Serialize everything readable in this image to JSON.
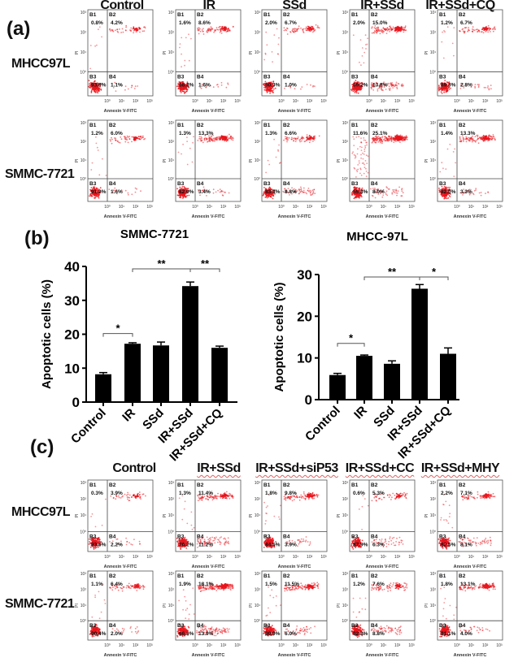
{
  "panel_a": {
    "label": "(a)",
    "columns": [
      "Control",
      "IR",
      "SSd",
      "IR+SSd",
      "IR+SSd+CQ"
    ],
    "x_axis_label": "Annexin V-FITC",
    "y_axis_label": "PI",
    "tick_labels": [
      "10⁰",
      "10¹",
      "10²",
      "10³"
    ],
    "rows": [
      {
        "cell_line": "MHCC97L",
        "plots": [
          {
            "b1": "0.8%",
            "b2": "4.2%",
            "b3": "93.9%",
            "b4": "1.1%"
          },
          {
            "b1": "1.6%",
            "b2": "8.6%",
            "b3": "88.2%",
            "b4": "1.6%"
          },
          {
            "b1": "2.0%",
            "b2": "6.7%",
            "b3": "90.3%",
            "b4": "1.0%"
          },
          {
            "b1": "2.0%",
            "b2": "15.0%",
            "b3": "69.2%",
            "b4": "13.8%"
          },
          {
            "b1": "1.2%",
            "b2": "6.7%",
            "b3": "89.3%",
            "b4": "2.8%"
          }
        ]
      },
      {
        "cell_line": "SMMC-7721",
        "plots": [
          {
            "b1": "1.2%",
            "b2": "6.0%",
            "b3": "91.2%",
            "b4": "1.6%"
          },
          {
            "b1": "1.3%",
            "b2": "13.3%",
            "b3": "82.0%",
            "b4": "3.4%"
          },
          {
            "b1": "1.3%",
            "b2": "6.6%",
            "b3": "83.3%",
            "b4": "8.8%"
          },
          {
            "b1": "11.6%",
            "b2": "25.1%",
            "b3": "55.3%",
            "b4": "8.0%"
          },
          {
            "b1": "1.4%",
            "b2": "13.3%",
            "b3": "82.0%",
            "b4": "3.3%"
          }
        ]
      }
    ]
  },
  "panel_b": {
    "label": "(b)"
  },
  "panel_c": {
    "label": "(c)",
    "columns": [
      "Control",
      "IR+SSd",
      "IR+SSd+siP53",
      "IR+SSd+CC",
      "IR+SSd+MHY"
    ],
    "x_axis_label": "Annexin V-FITC",
    "y_axis_label": "PI",
    "tick_labels": [
      "10⁰",
      "10¹",
      "10²",
      "10³"
    ],
    "rows": [
      {
        "cell_line": "MHCC97L",
        "plots": [
          {
            "b1": "0.3%",
            "b2": "3.9%",
            "b3": "93.6%",
            "b4": "2.2%"
          },
          {
            "b1": "1.3%",
            "b2": "11.4%",
            "b3": "76.2%",
            "b4": "11.2%"
          },
          {
            "b1": "1.8%",
            "b2": "9.8%",
            "b3": "84.5%",
            "b4": "3.9%"
          },
          {
            "b1": "0.6%",
            "b2": "5.3%",
            "b3": "87.9%",
            "b4": "6.3%"
          },
          {
            "b1": "2.2%",
            "b2": "7.1%",
            "b3": "82.5%",
            "b4": "8.1%"
          }
        ]
      },
      {
        "cell_line": "SMMC-7721",
        "plots": [
          {
            "b1": "1.1%",
            "b2": "6.4%",
            "b3": "90.4%",
            "b4": "2.0%"
          },
          {
            "b1": "1.9%",
            "b2": "18.1%",
            "b3": "66.1%",
            "b4": "13.9%"
          },
          {
            "b1": "1.5%",
            "b2": "11.5%",
            "b3": "80.9%",
            "b4": "6.0%"
          },
          {
            "b1": "1.2%",
            "b2": "7.6%",
            "b3": "82.3%",
            "b4": "8.8%"
          },
          {
            "b1": "1.8%",
            "b2": "13.1%",
            "b3": "81.1%",
            "b4": "4.0%"
          }
        ]
      }
    ]
  },
  "colors": {
    "dots": "#e8141c",
    "bars": "#000000"
  },
  "chart_data": [
    {
      "type": "bar",
      "title": "SMMC-7721",
      "ylabel": "Apoptotic cells (%)",
      "xlabel": "",
      "categories": [
        "Control",
        "IR",
        "SSd",
        "IR+SSd",
        "IR+SSd+CQ"
      ],
      "values": [
        8.2,
        17.2,
        16.7,
        34.2,
        16.0
      ],
      "errors": [
        0.5,
        0.3,
        1.0,
        1.2,
        0.5
      ],
      "ylim": [
        0,
        40
      ],
      "yticks": [
        "0",
        "10",
        "20",
        "30",
        "40"
      ],
      "grid": false,
      "significance": [
        {
          "from": "Control",
          "to": "IR",
          "label": "*"
        },
        {
          "from": "IR",
          "to": "IR+SSd",
          "label": "**"
        },
        {
          "from": "IR+SSd",
          "to": "IR+SSd+CQ",
          "label": "**"
        }
      ]
    },
    {
      "type": "bar",
      "title": "MHCC-97L",
      "ylabel": "Apoptotic cells (%)",
      "xlabel": "",
      "categories": [
        "Control",
        "IR",
        "SSd",
        "IR+SSd",
        "IR+SSd+CQ"
      ],
      "values": [
        5.9,
        10.5,
        8.6,
        26.6,
        11.0
      ],
      "errors": [
        0.4,
        0.2,
        0.7,
        1.0,
        1.4
      ],
      "ylim": [
        0,
        30
      ],
      "yticks": [
        "0",
        "10",
        "20",
        "30"
      ],
      "grid": false,
      "significance": [
        {
          "from": "Control",
          "to": "IR",
          "label": "*"
        },
        {
          "from": "IR",
          "to": "IR+SSd",
          "label": "**"
        },
        {
          "from": "IR+SSd",
          "to": "IR+SSd+CQ",
          "label": "*"
        }
      ]
    }
  ]
}
